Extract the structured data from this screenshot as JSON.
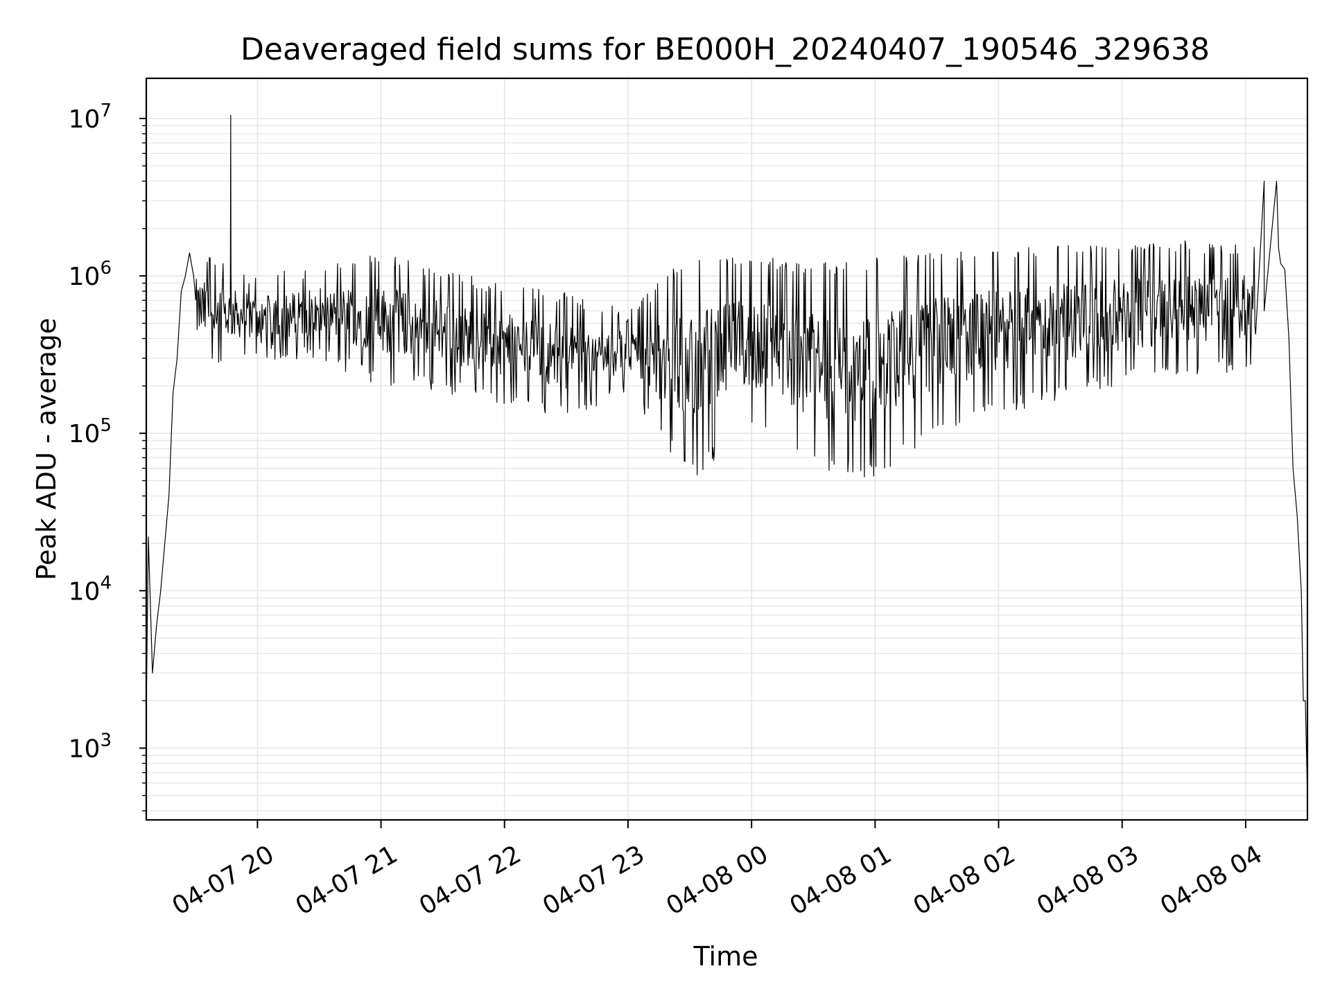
{
  "chart_data": {
    "type": "line",
    "title": "Deaveraged field sums for BE000H_20240407_190546_329638",
    "xlabel": "Time",
    "ylabel": "Peak ADU - average",
    "yscale": "log",
    "ylim": [
      350,
      18000000
    ],
    "xlim": [
      "2024-04-07 19:06",
      "2024-04-08 04:30"
    ],
    "grid": true,
    "series_color": "#000000",
    "grid_color": "#e6e6e6",
    "x_ticks": [
      {
        "label": "04-07 20",
        "time": "2024-04-07 20:00"
      },
      {
        "label": "04-07 21",
        "time": "2024-04-07 21:00"
      },
      {
        "label": "04-07 22",
        "time": "2024-04-07 22:00"
      },
      {
        "label": "04-07 23",
        "time": "2024-04-07 23:00"
      },
      {
        "label": "04-08 00",
        "time": "2024-04-08 00:00"
      },
      {
        "label": "04-08 01",
        "time": "2024-04-08 01:00"
      },
      {
        "label": "04-08 02",
        "time": "2024-04-08 02:00"
      },
      {
        "label": "04-08 03",
        "time": "2024-04-08 03:00"
      },
      {
        "label": "04-08 04",
        "time": "2024-04-08 04:00"
      }
    ],
    "y_ticks": [
      {
        "base": "10",
        "exp": "3",
        "value": 1000
      },
      {
        "base": "10",
        "exp": "4",
        "value": 10000
      },
      {
        "base": "10",
        "exp": "5",
        "value": 100000
      },
      {
        "base": "10",
        "exp": "6",
        "value": 1000000
      },
      {
        "base": "10",
        "exp": "7",
        "value": 10000000
      }
    ],
    "series": [
      {
        "x": [
          "2024-04-07 19:06",
          "2024-04-07 19:07",
          "2024-04-07 19:09",
          "2024-04-07 19:11",
          "2024-04-07 19:13",
          "2024-04-07 19:15",
          "2024-04-07 19:17",
          "2024-04-07 19:19",
          "2024-04-07 19:21",
          "2024-04-07 19:23",
          "2024-04-07 19:25",
          "2024-04-07 19:27",
          "2024-04-07 19:29",
          "2024-04-07 19:31",
          "2024-04-07 19:33",
          "2024-04-07 19:36",
          "2024-04-07 19:40",
          "2024-04-07 19:45",
          "2024-04-07 19:47",
          "2024-04-07 19:47",
          "2024-04-07 19:48",
          "2024-04-07 19:52",
          "2024-04-07 19:55",
          "2024-04-07 19:56",
          "2024-04-07 19:57",
          "2024-04-07 20:00",
          "2024-04-07 20:10",
          "2024-04-07 20:20",
          "2024-04-07 20:30",
          "2024-04-07 20:40",
          "2024-04-07 20:50",
          "2024-04-07 21:00",
          "2024-04-07 21:10",
          "2024-04-07 21:20",
          "2024-04-07 21:30",
          "2024-04-07 21:40",
          "2024-04-07 21:50",
          "2024-04-07 22:00",
          "2024-04-07 22:10",
          "2024-04-07 22:20",
          "2024-04-07 22:30",
          "2024-04-07 22:40",
          "2024-04-07 22:50",
          "2024-04-07 23:00",
          "2024-04-07 23:10",
          "2024-04-07 23:20",
          "2024-04-07 23:30",
          "2024-04-07 23:40",
          "2024-04-07 23:50",
          "2024-04-08 00:00",
          "2024-04-08 00:10",
          "2024-04-08 00:20",
          "2024-04-08 00:30",
          "2024-04-08 00:40",
          "2024-04-08 00:50",
          "2024-04-08 01:00",
          "2024-04-08 01:10",
          "2024-04-08 01:20",
          "2024-04-08 01:30",
          "2024-04-08 01:40",
          "2024-04-08 01:50",
          "2024-04-08 02:00",
          "2024-04-08 02:10",
          "2024-04-08 02:20",
          "2024-04-08 02:30",
          "2024-04-08 02:40",
          "2024-04-08 02:50",
          "2024-04-08 03:00",
          "2024-04-08 03:10",
          "2024-04-08 03:20",
          "2024-04-08 03:30",
          "2024-04-08 03:40",
          "2024-04-08 03:50",
          "2024-04-08 04:00",
          "2024-04-08 04:09",
          "2024-04-08 04:15",
          "2024-04-08 04:16",
          "2024-04-08 04:17",
          "2024-04-08 04:19",
          "2024-04-08 04:21",
          "2024-04-08 04:23",
          "2024-04-08 04:25",
          "2024-04-08 04:27",
          "2024-04-08 04:28",
          "2024-04-08 04:29",
          "2024-04-08 04:30"
        ],
        "y": [
          1700,
          22000,
          3000,
          6000,
          10000,
          20000,
          40000,
          180000,
          300000,
          800000,
          1000000,
          1400000,
          1000000,
          400000,
          700000,
          600000,
          600000,
          800000,
          10500000,
          800000,
          500000,
          700000,
          1800000,
          600000,
          800000,
          600000,
          700000,
          600000,
          500000,
          500000,
          450000,
          450000,
          350000,
          300000,
          280000,
          260000,
          250000,
          270000,
          300000,
          200000,
          180000,
          250000,
          220000,
          300000,
          280000,
          250000,
          150000,
          120000,
          130000,
          160000,
          170000,
          200000,
          180000,
          150000,
          70000,
          60000,
          70000,
          120000,
          200000,
          180000,
          200000,
          220000,
          250000,
          300000,
          400000,
          350000,
          400000,
          450000,
          500000,
          520000,
          600000,
          550000,
          600000,
          650000,
          600000,
          4000000,
          1500000,
          1200000,
          1100000,
          400000,
          60000,
          30000,
          10000,
          2000,
          2000,
          500
        ]
      }
    ],
    "noise_envelope": {
      "x": [
        "2024-04-07 19:30",
        "2024-04-07 20:00",
        "2024-04-07 20:30",
        "2024-04-07 21:00",
        "2024-04-07 21:30",
        "2024-04-07 22:00",
        "2024-04-07 22:30",
        "2024-04-07 23:00",
        "2024-04-07 23:30",
        "2024-04-08 00:00",
        "2024-04-08 00:30",
        "2024-04-08 01:00",
        "2024-04-08 01:30",
        "2024-04-08 02:00",
        "2024-04-08 02:30",
        "2024-04-08 03:00",
        "2024-04-08 03:30",
        "2024-04-08 04:00"
      ],
      "low": [
        250000,
        300000,
        280000,
        200000,
        180000,
        150000,
        120000,
        180000,
        50000,
        100000,
        60000,
        50000,
        100000,
        130000,
        160000,
        200000,
        230000,
        250000
      ],
      "high": [
        1500000,
        1000000,
        1200000,
        1400000,
        1100000,
        900000,
        800000,
        600000,
        1400000,
        1400000,
        1200000,
        1300000,
        1500000,
        1500000,
        1600000,
        1600000,
        1700000,
        1600000
      ]
    }
  }
}
